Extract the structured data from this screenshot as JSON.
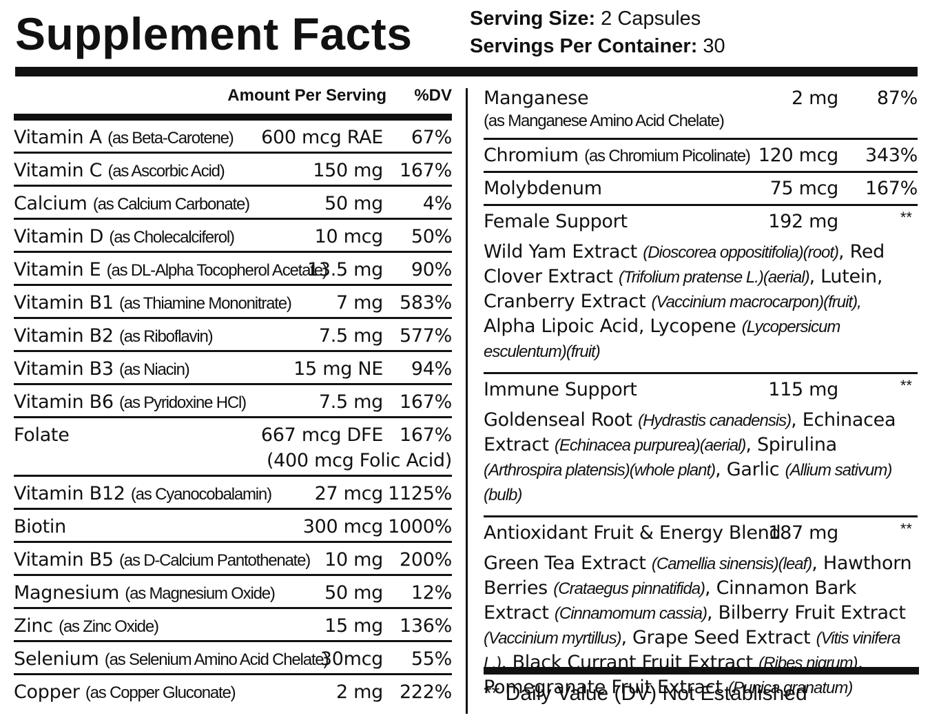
{
  "header": {
    "title": "Supplement Facts",
    "serving_size_label": "Serving Size:",
    "serving_size_value": " 2 Capsules",
    "servings_label": "Servings Per Container:",
    "servings_value": " 30"
  },
  "left": {
    "amount_header": "Amount Per Serving",
    "dv_header": "%DV",
    "rows": [
      {
        "name": "Vitamin A",
        "source": "(as Beta-Carotene)",
        "amount": "600 mcg RAE",
        "dv": "67%"
      },
      {
        "name": "Vitamin C",
        "source": "(as Ascorbic Acid)",
        "amount": "150 mg",
        "dv": "167%"
      },
      {
        "name": "Calcium",
        "source": "(as Calcium Carbonate)",
        "amount": "50 mg",
        "dv": "4%"
      },
      {
        "name": "Vitamin D",
        "source": "(as Cholecalciferol)",
        "amount": "10 mcg",
        "dv": "50%"
      },
      {
        "name": "Vitamin E",
        "source": "(as DL-Alpha Tocopherol Acetate)",
        "amount": "13.5 mg",
        "dv": "90%"
      },
      {
        "name": "Vitamin B1",
        "source": "(as Thiamine Mononitrate)",
        "amount": "7 mg",
        "dv": "583%"
      },
      {
        "name": "Vitamin B2",
        "source": "(as Riboflavin)",
        "amount": "7.5 mg",
        "dv": "577%"
      },
      {
        "name": "Vitamin B3",
        "source": "(as Niacin)",
        "amount": "15 mg NE",
        "dv": "94%"
      },
      {
        "name": "Vitamin B6",
        "source": "(as Pyridoxine HCl)",
        "amount": "7.5 mg",
        "dv": "167%"
      },
      {
        "name": "Folate",
        "source": "",
        "amount": "667 mcg DFE",
        "dv": "167%",
        "amount2": "(400 mcg Folic Acid)"
      },
      {
        "name": "Vitamin B12",
        "source": "(as Cyanocobalamin)",
        "amount": "27 mcg",
        "dv": "1125%"
      },
      {
        "name": "Biotin",
        "source": "",
        "amount": "300 mcg",
        "dv": "1000%"
      },
      {
        "name": "Vitamin B5",
        "source": "(as D-Calcium Pantothenate)",
        "amount": "10 mg",
        "dv": "200%"
      },
      {
        "name": "Magnesium",
        "source": "(as Magnesium Oxide)",
        "amount": "50 mg",
        "dv": "12%"
      },
      {
        "name": "Zinc",
        "source": "(as Zinc Oxide)",
        "amount": "15 mg",
        "dv": "136%"
      },
      {
        "name": "Selenium",
        "source": "(as Selenium Amino Acid Chelate)",
        "amount": "30mcg",
        "dv": "55%"
      },
      {
        "name": "Copper",
        "source": "(as Copper Gluconate)",
        "amount": "2 mg",
        "dv": "222%"
      }
    ]
  },
  "right": {
    "manganese": {
      "name": "Manganese",
      "source": "(as Manganese Amino Acid Chelate)",
      "amount": "2 mg",
      "dv": "87%"
    },
    "chromium": {
      "name": "Chromium",
      "source": "(as Chromium Picolinate)",
      "amount": "120 mcg",
      "dv": "343%"
    },
    "molybdenum": {
      "name": "Molybdenum",
      "amount": "75 mcg",
      "dv": "167%"
    },
    "female": {
      "name": "Female Support",
      "amount": "192 mg",
      "dv": "**",
      "ingredients": [
        {
          "t": "Wild Yam Extract "
        },
        {
          "i": "(Dioscorea oppositifolia)(root)"
        },
        {
          "t": ", Red Clover Extract "
        },
        {
          "i": "(Trifolium pratense L.)(aerial)"
        },
        {
          "t": ", Lutein, Cranberry Extract "
        },
        {
          "i": "(Vaccinium macrocarpon)(fruit),"
        },
        {
          "t": " Alpha Lipoic Acid, Lycopene "
        },
        {
          "i": "(Lycopersicum esculentum)(fruit)"
        }
      ]
    },
    "immune": {
      "name": "Immune Support",
      "amount": "115 mg",
      "dv": "**",
      "ingredients": [
        {
          "t": "Goldenseal Root "
        },
        {
          "i": "(Hydrastis canadensis)"
        },
        {
          "t": ", Echinacea Extract "
        },
        {
          "i": "(Echinacea purpurea)(aerial)"
        },
        {
          "t": ", Spirulina "
        },
        {
          "i": "(Arthrospira platensis)(whole plant)"
        },
        {
          "t": ", Garlic "
        },
        {
          "i": "(Allium sativum)(bulb)"
        }
      ]
    },
    "antioxidant": {
      "name": "Antioxidant Fruit & Energy Blend",
      "amount": "187 mg",
      "dv": "**",
      "ingredients": [
        {
          "t": "Green Tea Extract "
        },
        {
          "i": "(Camellia sinensis)(leaf)"
        },
        {
          "t": ", Hawthorn Berries "
        },
        {
          "i": "(Crataegus pinnatifida)"
        },
        {
          "t": ", Cinnamon Bark Extract "
        },
        {
          "i": "(Cinnamomum cassia)"
        },
        {
          "t": ", Bilberry Fruit Extract "
        },
        {
          "i": "(Vaccinium myrtillus)"
        },
        {
          "t": ", Grape Seed Extract "
        },
        {
          "i": "(Vitis vinifera L.)"
        },
        {
          "t": ", Black Currant Fruit Extract "
        },
        {
          "i": "(Ribes nigrum)"
        },
        {
          "t": ", Pomegranate Fruit Extract "
        },
        {
          "i": "(Punica granatum)"
        }
      ]
    },
    "footnote": "** Daily Value (DV) Not Established"
  }
}
